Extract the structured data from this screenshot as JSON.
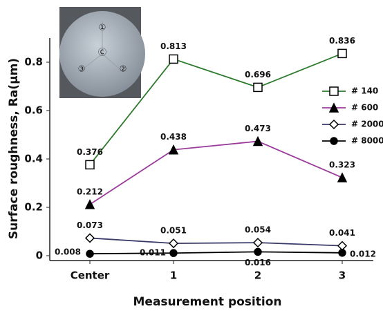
{
  "chart_data": {
    "type": "line",
    "y_label": "Surface roughness, Ra(μm)",
    "x_label": "Measurement position",
    "categories": [
      "Center",
      "1",
      "2",
      "3"
    ],
    "series": [
      {
        "name": "# 140",
        "color": "#2d7a2d",
        "marker": "square-open",
        "values": [
          0.376,
          0.813,
          0.696,
          0.836
        ]
      },
      {
        "name": "# 600",
        "color": "#9b3b9b",
        "marker": "triangle",
        "values": [
          0.212,
          0.438,
          0.473,
          0.323
        ]
      },
      {
        "name": "# 2000",
        "color": "#3a3a6a",
        "marker": "diamond-open",
        "values": [
          0.073,
          0.051,
          0.054,
          0.041
        ]
      },
      {
        "name": "# 8000",
        "color": "#000000",
        "marker": "circle",
        "values": [
          0.008,
          0.011,
          0.016,
          0.012
        ]
      }
    ],
    "ylim": [
      -0.02,
      0.9
    ],
    "yticks": [
      0,
      0.2,
      0.4,
      0.6,
      0.8
    ],
    "inset_labels": [
      "①",
      "Ⓒ",
      "②",
      "③"
    ]
  }
}
